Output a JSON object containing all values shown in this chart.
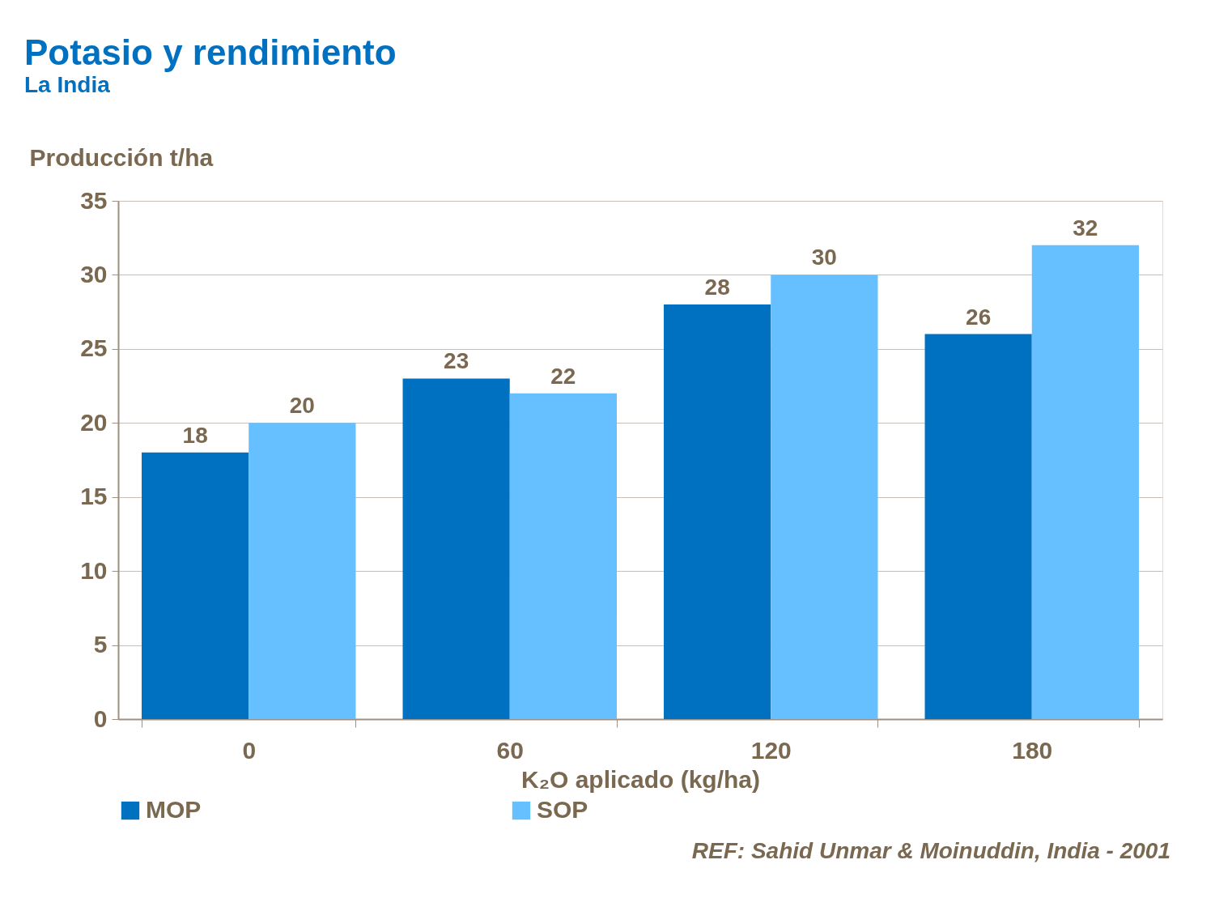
{
  "chart_data": {
    "type": "bar",
    "title": "Potasio y rendimiento",
    "subtitle": "La India",
    "xlabel": "K₂O aplicado (kg/ha)",
    "ylabel": "Producción t/ha",
    "categories": [
      "0",
      "60",
      "120",
      "180"
    ],
    "series": [
      {
        "name": "MOP",
        "color": "#0070c0",
        "values": [
          18,
          23,
          28,
          26
        ]
      },
      {
        "name": "SOP",
        "color": "#66bfff",
        "values": [
          20,
          22,
          30,
          32
        ]
      }
    ],
    "ylim": [
      0,
      35
    ],
    "yticks": [
      0,
      5,
      10,
      15,
      20,
      25,
      30,
      35
    ],
    "grid": "y",
    "legend": "bottom",
    "data_labels": true,
    "annotations": [
      "REF: Sahid Unmar & Moinuddin, India - 2001"
    ]
  }
}
